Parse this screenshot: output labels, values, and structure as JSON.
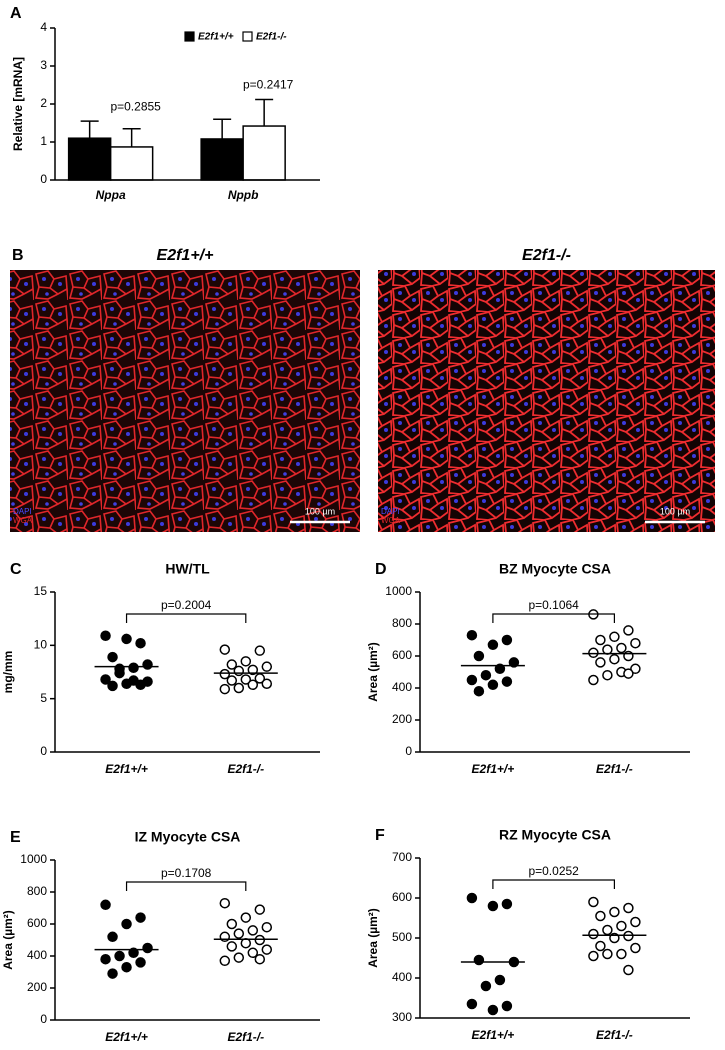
{
  "chart_data": [
    {
      "type": "bar",
      "panel": "A",
      "ylabel": "Relative [mRNA]",
      "categories": [
        "Nppa",
        "Nppb"
      ],
      "series": [
        {
          "name": "E2f1+/+",
          "color": "#000000",
          "values": [
            1.1,
            1.08
          ],
          "errors": [
            0.45,
            0.52
          ]
        },
        {
          "name": "E2f1-/-",
          "color": "#ffffff",
          "values": [
            0.87,
            1.42
          ],
          "errors": [
            0.48,
            0.7
          ]
        }
      ],
      "annotations": [
        "p=0.2855",
        "p=0.2417"
      ],
      "ylim": [
        0,
        4
      ],
      "yticks": [
        0,
        1,
        2,
        3,
        4
      ]
    },
    {
      "type": "strip",
      "panel": "C",
      "title": "HW/TL",
      "ylabel": "mg/mm",
      "categories": [
        "E2f1+/+",
        "E2f1-/-"
      ],
      "series": [
        {
          "color": "#000000",
          "values": [
            10.9,
            10.2,
            10.6,
            8.9,
            8.2,
            7.9,
            7.4,
            6.8,
            6.3,
            6.4,
            6.2,
            6.6,
            6.7,
            7.8
          ]
        },
        {
          "color": "#ffffff",
          "values": [
            9.6,
            9.5,
            8.5,
            8.2,
            8.0,
            7.7,
            7.6,
            7.3,
            6.9,
            6.8,
            6.7,
            6.4,
            6.3,
            6.0,
            5.9
          ]
        }
      ],
      "means": [
        8.0,
        7.4
      ],
      "annotation": "p=0.2004",
      "ylim": [
        0,
        15
      ],
      "yticks": [
        0,
        5,
        10,
        15
      ]
    },
    {
      "type": "strip",
      "panel": "D",
      "title": "BZ Myocyte CSA",
      "ylabel": "Area (µm²)",
      "categories": [
        "E2f1+/+",
        "E2f1-/-"
      ],
      "series": [
        {
          "color": "#000000",
          "values": [
            730,
            700,
            670,
            600,
            560,
            520,
            480,
            450,
            440,
            420,
            380
          ]
        },
        {
          "color": "#ffffff",
          "values": [
            860,
            760,
            720,
            700,
            680,
            650,
            640,
            620,
            600,
            580,
            560,
            520,
            500,
            480,
            450,
            490
          ]
        }
      ],
      "means": [
        540,
        615
      ],
      "annotation": "p=0.1064",
      "ylim": [
        0,
        1000
      ],
      "yticks": [
        0,
        200,
        400,
        600,
        800,
        1000
      ]
    },
    {
      "type": "strip",
      "panel": "E",
      "title": "IZ Myocyte CSA",
      "ylabel": "Area (µm²)",
      "categories": [
        "E2f1+/+",
        "E2f1-/-"
      ],
      "series": [
        {
          "color": "#000000",
          "values": [
            720,
            640,
            600,
            520,
            450,
            420,
            400,
            380,
            360,
            330,
            290
          ]
        },
        {
          "color": "#ffffff",
          "values": [
            730,
            690,
            640,
            600,
            580,
            560,
            540,
            520,
            500,
            480,
            460,
            440,
            420,
            390,
            370,
            380
          ]
        }
      ],
      "means": [
        440,
        505
      ],
      "annotation": "p=0.1708",
      "ylim": [
        0,
        1000
      ],
      "yticks": [
        0,
        200,
        400,
        600,
        800,
        1000
      ]
    },
    {
      "type": "strip",
      "panel": "F",
      "title": "RZ Myocyte CSA",
      "ylabel": "Area (µm²)",
      "categories": [
        "E2f1+/+",
        "E2f1-/-"
      ],
      "series": [
        {
          "color": "#000000",
          "values": [
            600,
            585,
            580,
            445,
            440,
            395,
            380,
            335,
            330,
            320
          ]
        },
        {
          "color": "#ffffff",
          "values": [
            590,
            575,
            565,
            555,
            540,
            530,
            520,
            510,
            505,
            500,
            480,
            475,
            460,
            460,
            455,
            420
          ]
        }
      ],
      "means": [
        440,
        507
      ],
      "annotation": "p=0.0252",
      "ylim": [
        300,
        700
      ],
      "yticks": [
        300,
        400,
        500,
        600,
        700
      ]
    }
  ],
  "image_panel": {
    "panel": "B",
    "images": [
      {
        "label": "E2f1+/+",
        "channels": [
          "DAPI",
          "WGA"
        ],
        "scale_bar": "100 µm"
      },
      {
        "label": "E2f1-/-",
        "channels": [
          "DAPI",
          "WGA"
        ],
        "scale_bar": "100 µm"
      }
    ]
  }
}
